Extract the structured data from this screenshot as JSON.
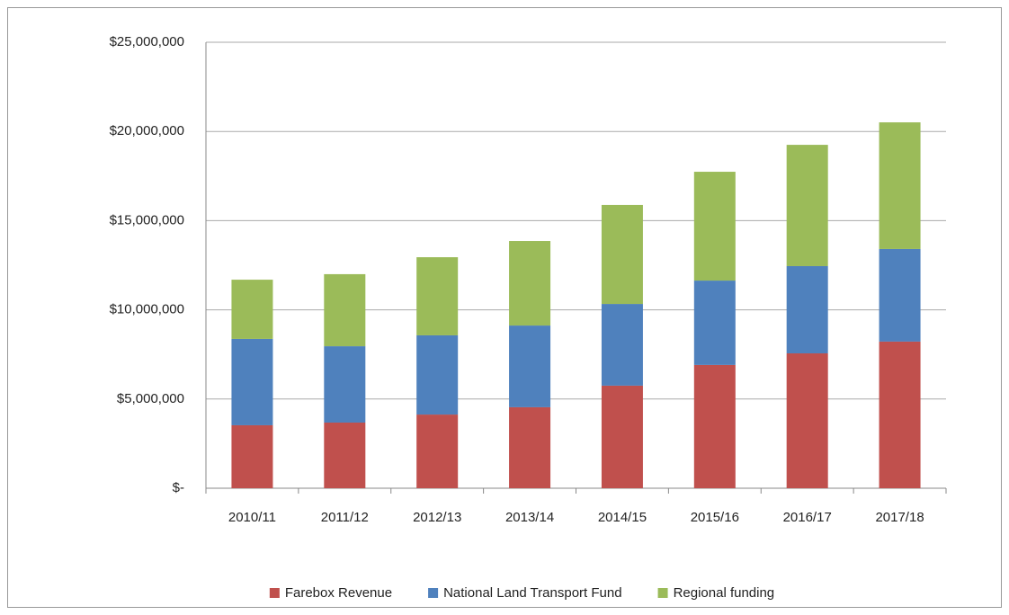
{
  "chart_data": {
    "type": "stacked-bar",
    "categories": [
      "2010/11",
      "2011/12",
      "2012/13",
      "2013/14",
      "2014/15",
      "2015/16",
      "2016/17",
      "2017/18"
    ],
    "series": [
      {
        "name": "Farebox Revenue",
        "color": "#c0504d",
        "values": [
          3530000,
          3680000,
          4130000,
          4540000,
          5750000,
          6910000,
          7560000,
          8220000
        ]
      },
      {
        "name": "National Land Transport Fund",
        "color": "#4f81bd",
        "values": [
          4840000,
          4280000,
          4440000,
          4580000,
          4580000,
          4730000,
          4890000,
          5190000
        ]
      },
      {
        "name": "Regional funding",
        "color": "#9bbb59",
        "values": [
          3320000,
          4040000,
          4380000,
          4740000,
          5550000,
          6100000,
          6800000,
          7100000
        ]
      }
    ],
    "ylim": [
      0,
      25000000
    ],
    "yticks": [
      {
        "value": 0,
        "label": "$-"
      },
      {
        "value": 5000000,
        "label": "$5,000,000"
      },
      {
        "value": 10000000,
        "label": "$10,000,000"
      },
      {
        "value": 15000000,
        "label": "$15,000,000"
      },
      {
        "value": 20000000,
        "label": "$20,000,000"
      },
      {
        "value": 25000000,
        "label": "$25,000,000"
      }
    ],
    "grid": true,
    "legend": "bottom"
  }
}
